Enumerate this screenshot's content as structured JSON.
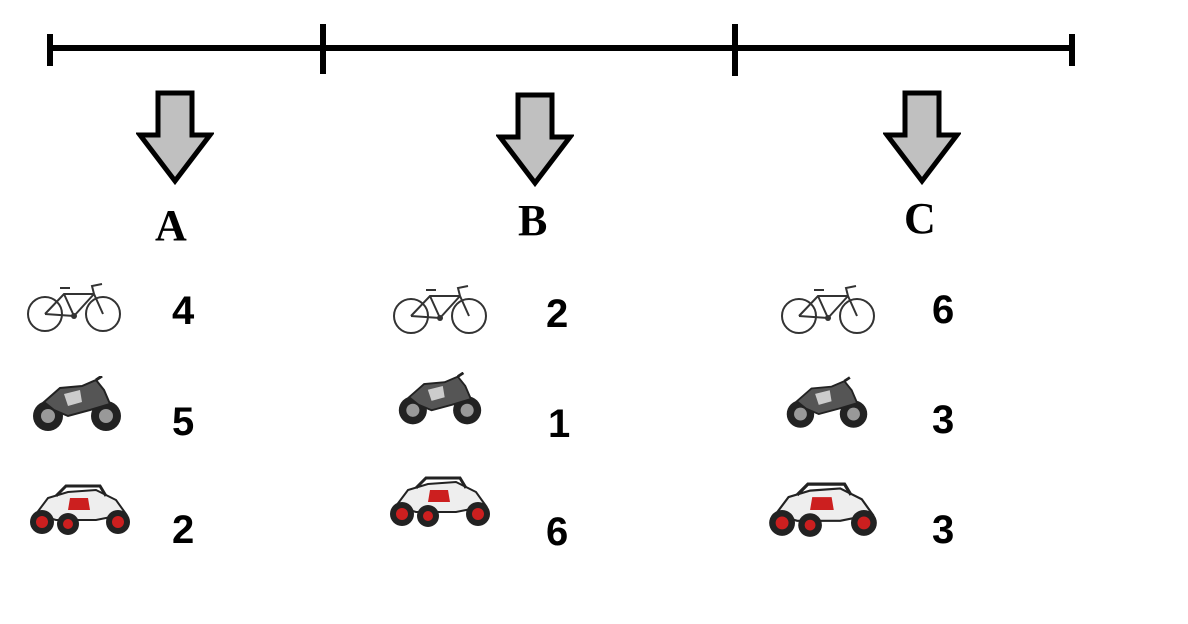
{
  "sections": [
    {
      "label": "A",
      "items": [
        {
          "icon": "bicycle-icon",
          "count": "4"
        },
        {
          "icon": "motorcycle-icon",
          "count": "5"
        },
        {
          "icon": "buggy-icon",
          "count": "2"
        }
      ]
    },
    {
      "label": "B",
      "items": [
        {
          "icon": "bicycle-icon",
          "count": "2"
        },
        {
          "icon": "motorcycle-icon",
          "count": "1"
        },
        {
          "icon": "buggy-icon",
          "count": "6"
        }
      ]
    },
    {
      "label": "C",
      "items": [
        {
          "icon": "bicycle-icon",
          "count": "6"
        },
        {
          "icon": "motorcycle-icon",
          "count": "3"
        },
        {
          "icon": "buggy-icon",
          "count": "3"
        }
      ]
    }
  ],
  "colors": {
    "line": "#000000",
    "arrow_fill": "#c0c0c0",
    "buggy_accent": "#cc1f1f",
    "motorcycle_body": "#555555"
  }
}
